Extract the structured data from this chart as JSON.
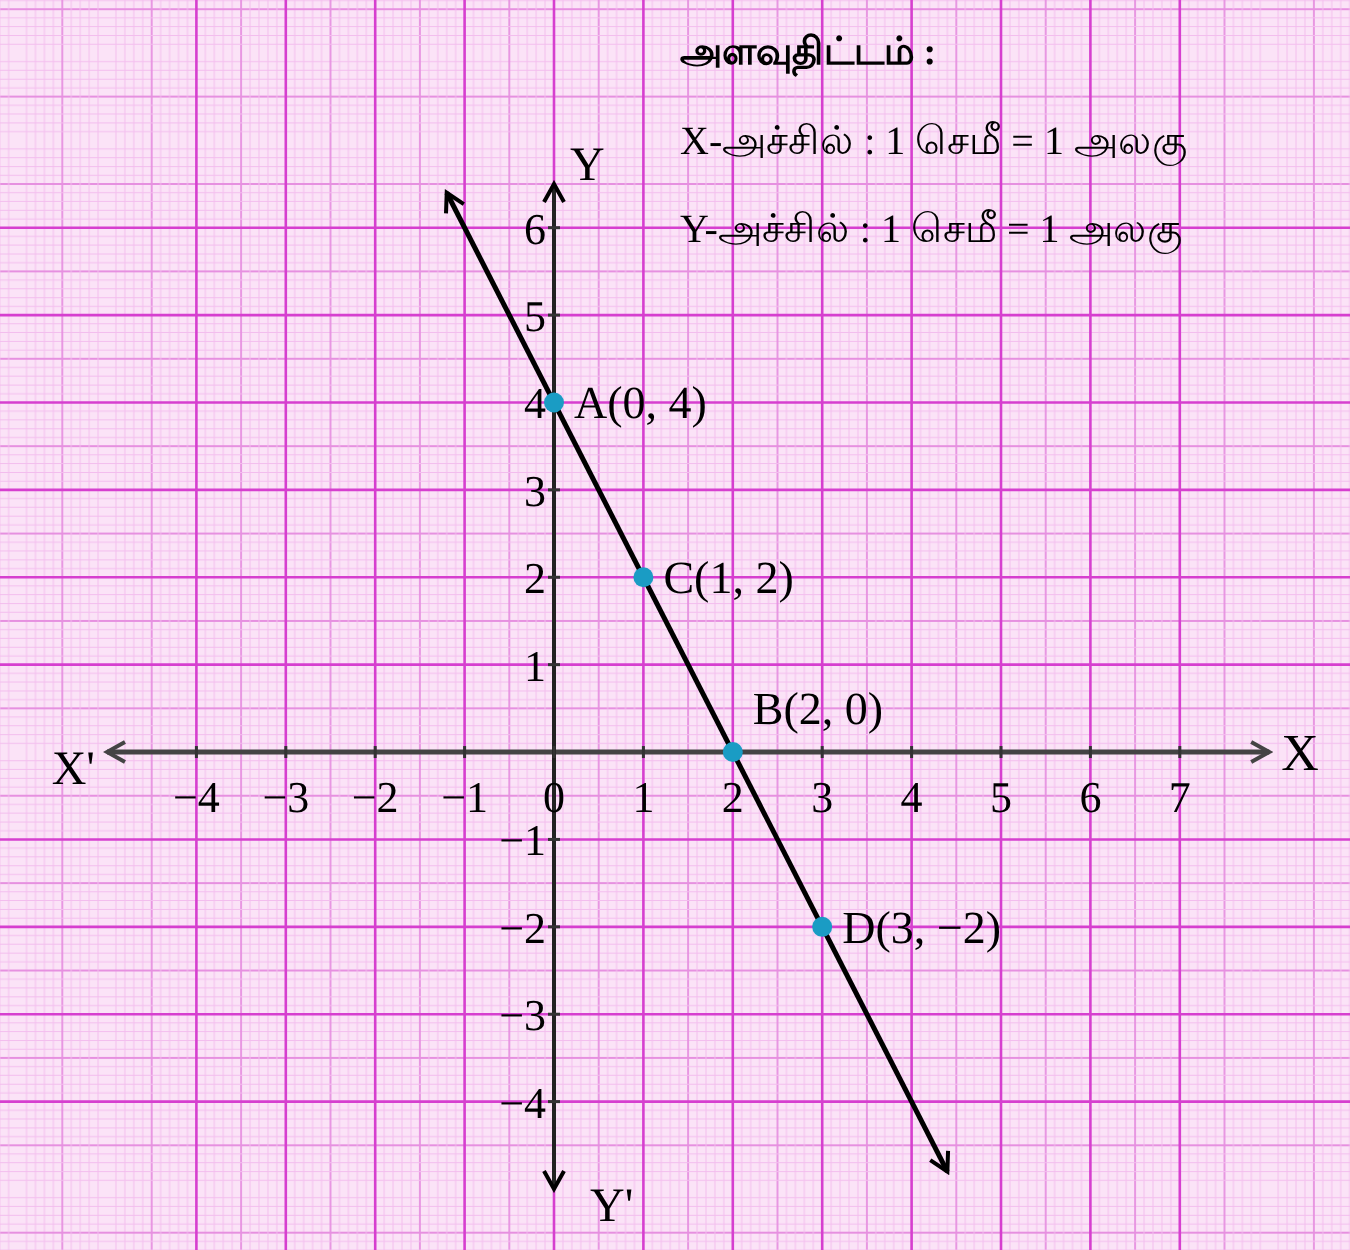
{
  "chart_data": {
    "type": "line",
    "title": "அளவுதிட்டம் :",
    "xlabel": "X",
    "ylabel": "Y",
    "annotations": [
      "X-அச்சில் : 1 செமீ = 1 அலகு",
      "Y-அச்சில் : 1 செமீ = 1 அலகு",
      "X'",
      "Y'"
    ],
    "xlim": [
      -5,
      8
    ],
    "ylim": [
      -5,
      6.5
    ],
    "xticks": [
      {
        "value": -4,
        "label": "−4"
      },
      {
        "value": -3,
        "label": "−3"
      },
      {
        "value": -2,
        "label": "−2"
      },
      {
        "value": -1,
        "label": "−1"
      },
      0,
      1,
      2,
      3,
      4,
      5,
      6,
      7
    ],
    "yticks": [
      {
        "value": -4,
        "label": "−4"
      },
      {
        "value": -3,
        "label": "−3"
      },
      {
        "value": -2,
        "label": "−2"
      },
      {
        "value": -1,
        "label": "−1"
      },
      1,
      2,
      3,
      4,
      5,
      6
    ],
    "grid": true,
    "series": [
      {
        "type": "line",
        "x": [
          -1.2,
          4.4
        ],
        "values": [
          6.4,
          -4.8
        ],
        "color": "#000000"
      },
      {
        "type": "scatter",
        "x": [
          0,
          1,
          2,
          3
        ],
        "values": [
          4,
          2,
          0,
          -2
        ],
        "color": "#1a9cc4",
        "marker": "circle",
        "value_labels": [
          "A(0, 4)",
          "C(1, 2)",
          "B(2, 0)",
          "D(3, −2)"
        ]
      }
    ]
  }
}
